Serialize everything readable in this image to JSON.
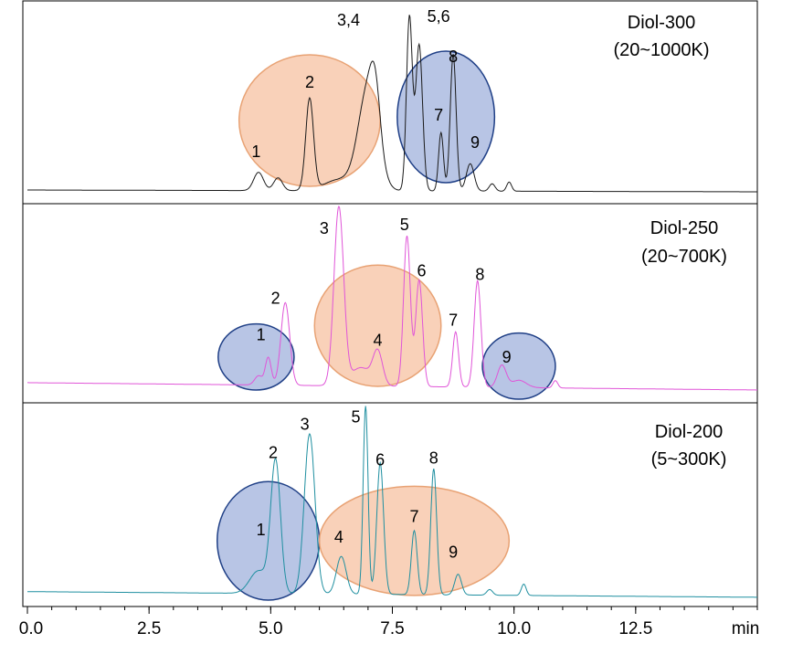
{
  "chart_data": {
    "type": "line",
    "x_unit": "min",
    "xlim": [
      0,
      15
    ],
    "x_ticks": [
      {
        "v": 0,
        "label": "0.0"
      },
      {
        "v": 2.5,
        "label": "2.5"
      },
      {
        "v": 5,
        "label": "5.0"
      },
      {
        "v": 7.5,
        "label": "7.5"
      },
      {
        "v": 10,
        "label": "10.0"
      },
      {
        "v": 12.5,
        "label": "12.5"
      }
    ],
    "panels": [
      {
        "id": "diol300",
        "title": "Diol-300",
        "subtitle": "(20~1000K)",
        "color": "#1a1a1a",
        "baseline_start": 0.02,
        "baseline_end": 0.01,
        "peaks": [
          {
            "x": 4.75,
            "h": 0.1,
            "w": 0.1
          },
          {
            "x": 5.15,
            "h": 0.07,
            "w": 0.09
          },
          {
            "x": 5.8,
            "h": 0.5,
            "w": 0.08
          },
          {
            "x": 6.4,
            "h": 0.06,
            "w": 0.3
          },
          {
            "x": 7.0,
            "h": 0.55,
            "w": 0.2
          },
          {
            "x": 7.15,
            "h": 0.25,
            "w": 0.1
          },
          {
            "x": 7.85,
            "h": 0.95,
            "w": 0.06
          },
          {
            "x": 8.05,
            "h": 0.8,
            "w": 0.07
          },
          {
            "x": 8.5,
            "h": 0.32,
            "w": 0.05
          },
          {
            "x": 8.75,
            "h": 0.75,
            "w": 0.06
          },
          {
            "x": 9.1,
            "h": 0.15,
            "w": 0.08
          },
          {
            "x": 9.55,
            "h": 0.04,
            "w": 0.06
          },
          {
            "x": 9.9,
            "h": 0.05,
            "w": 0.05
          }
        ],
        "labels": [
          {
            "text": "1",
            "x": 4.7,
            "h": 0.2
          },
          {
            "text": "2",
            "x": 5.8,
            "h": 0.58
          },
          {
            "text": "3,4",
            "x": 6.6,
            "h": 0.92
          },
          {
            "text": "5,6",
            "x": 8.45,
            "h": 0.94
          },
          {
            "text": "8",
            "x": 8.75,
            "h": 0.72
          },
          {
            "text": "7",
            "x": 8.45,
            "h": 0.4
          },
          {
            "text": "9",
            "x": 9.2,
            "h": 0.25
          }
        ],
        "ellipses": [
          {
            "color": "orange",
            "x": 5.8,
            "h": 0.4,
            "rx": 1.45,
            "ry": 0.72
          },
          {
            "color": "blue",
            "x": 8.6,
            "h": 0.42,
            "rx": 1.0,
            "ry": 0.72
          }
        ]
      },
      {
        "id": "diol250",
        "title": "Diol-250",
        "subtitle": "(20~700K)",
        "color": "#e055d8",
        "baseline_start": 0.07,
        "baseline_end": 0.03,
        "peaks": [
          {
            "x": 4.75,
            "h": 0.05,
            "w": 0.08
          },
          {
            "x": 4.95,
            "h": 0.15,
            "w": 0.06
          },
          {
            "x": 5.3,
            "h": 0.45,
            "w": 0.09
          },
          {
            "x": 6.4,
            "h": 0.97,
            "w": 0.1
          },
          {
            "x": 6.85,
            "h": 0.1,
            "w": 0.2
          },
          {
            "x": 7.2,
            "h": 0.18,
            "w": 0.1
          },
          {
            "x": 7.8,
            "h": 0.82,
            "w": 0.07
          },
          {
            "x": 8.05,
            "h": 0.58,
            "w": 0.07
          },
          {
            "x": 8.8,
            "h": 0.3,
            "w": 0.06
          },
          {
            "x": 9.25,
            "h": 0.58,
            "w": 0.07
          },
          {
            "x": 9.75,
            "h": 0.12,
            "w": 0.09
          },
          {
            "x": 10.1,
            "h": 0.04,
            "w": 0.15
          },
          {
            "x": 10.85,
            "h": 0.04,
            "w": 0.05
          }
        ],
        "labels": [
          {
            "text": "1",
            "x": 4.8,
            "h": 0.3
          },
          {
            "text": "2",
            "x": 5.1,
            "h": 0.5
          },
          {
            "text": "3",
            "x": 6.1,
            "h": 0.88
          },
          {
            "text": "4",
            "x": 7.2,
            "h": 0.27
          },
          {
            "text": "5",
            "x": 7.75,
            "h": 0.9
          },
          {
            "text": "6",
            "x": 8.1,
            "h": 0.65
          },
          {
            "text": "7",
            "x": 8.75,
            "h": 0.38
          },
          {
            "text": "8",
            "x": 9.3,
            "h": 0.63
          },
          {
            "text": "9",
            "x": 9.85,
            "h": 0.18
          }
        ],
        "ellipses": [
          {
            "color": "blue",
            "x": 4.7,
            "h": 0.21,
            "rx": 0.78,
            "ry": 0.36
          },
          {
            "color": "orange",
            "x": 7.2,
            "h": 0.38,
            "rx": 1.3,
            "ry": 0.66
          },
          {
            "color": "blue",
            "x": 10.1,
            "h": 0.16,
            "rx": 0.75,
            "ry": 0.36
          }
        ]
      },
      {
        "id": "diol200",
        "title": "Diol-200",
        "subtitle": "(5~300K)",
        "color": "#1f8fa0",
        "baseline_start": 0.05,
        "baseline_end": 0.02,
        "peaks": [
          {
            "x": 4.75,
            "h": 0.12,
            "w": 0.18
          },
          {
            "x": 5.1,
            "h": 0.7,
            "w": 0.1
          },
          {
            "x": 5.8,
            "h": 0.85,
            "w": 0.11
          },
          {
            "x": 6.45,
            "h": 0.2,
            "w": 0.1
          },
          {
            "x": 6.95,
            "h": 1.0,
            "w": 0.05
          },
          {
            "x": 7.25,
            "h": 0.7,
            "w": 0.07
          },
          {
            "x": 7.95,
            "h": 0.34,
            "w": 0.06
          },
          {
            "x": 8.35,
            "h": 0.67,
            "w": 0.06
          },
          {
            "x": 8.85,
            "h": 0.11,
            "w": 0.07
          },
          {
            "x": 9.5,
            "h": 0.03,
            "w": 0.06
          },
          {
            "x": 10.2,
            "h": 0.06,
            "w": 0.05
          }
        ],
        "labels": [
          {
            "text": "1",
            "x": 4.8,
            "h": 0.35
          },
          {
            "text": "2",
            "x": 5.05,
            "h": 0.76
          },
          {
            "text": "3",
            "x": 5.7,
            "h": 0.91
          },
          {
            "text": "4",
            "x": 6.4,
            "h": 0.31
          },
          {
            "text": "5",
            "x": 6.75,
            "h": 0.95
          },
          {
            "text": "6",
            "x": 7.25,
            "h": 0.72
          },
          {
            "text": "7",
            "x": 7.95,
            "h": 0.42
          },
          {
            "text": "8",
            "x": 8.35,
            "h": 0.73
          },
          {
            "text": "9",
            "x": 8.75,
            "h": 0.23
          }
        ],
        "ellipses": [
          {
            "color": "blue",
            "x": 4.95,
            "h": 0.32,
            "rx": 1.05,
            "ry": 0.63
          },
          {
            "color": "orange",
            "x": 7.95,
            "h": 0.32,
            "rx": 1.95,
            "ry": 0.58
          }
        ]
      }
    ]
  }
}
